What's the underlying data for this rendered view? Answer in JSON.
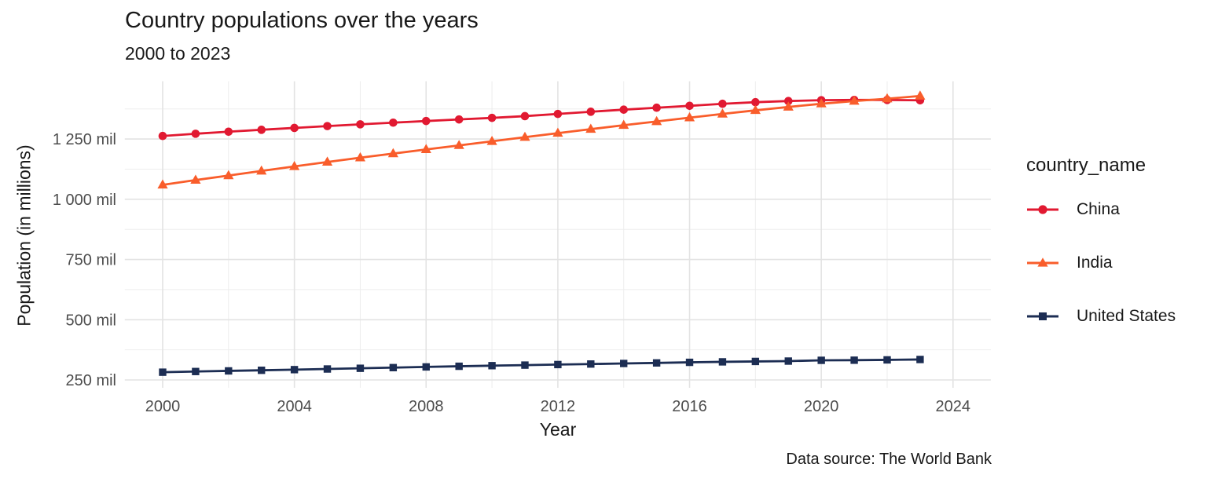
{
  "title": "Country populations over the years",
  "subtitle": "2000 to 2023",
  "caption": "Data source: The World Bank",
  "axes": {
    "x_label": "Year",
    "y_label": "Population (in millions)"
  },
  "legend": {
    "title": "country_name",
    "items": [
      "China",
      "India",
      "United States"
    ]
  },
  "colors": {
    "china": "#E11931",
    "india": "#F95D2B",
    "united_states": "#1C2D53",
    "grid_major": "#E3E3E3",
    "grid_minor": "#EDEDED",
    "tick_text": "#4D4D4D",
    "title_text": "#191919"
  },
  "chart_data": {
    "type": "line",
    "title": "Country populations over the years",
    "subtitle": "2000 to 2023",
    "xlabel": "Year",
    "ylabel": "Population (in millions)",
    "source": "Data source: The World Bank",
    "grid": true,
    "legend_position": "right",
    "legend_title": "country_name",
    "x": [
      2000,
      2001,
      2002,
      2003,
      2004,
      2005,
      2006,
      2007,
      2008,
      2009,
      2010,
      2011,
      2012,
      2013,
      2014,
      2015,
      2016,
      2017,
      2018,
      2019,
      2020,
      2021,
      2022,
      2023
    ],
    "series": [
      {
        "name": "China",
        "marker": "circle",
        "color": "#E11931",
        "values": [
          1262.6,
          1271.9,
          1280.4,
          1288.4,
          1296.1,
          1303.7,
          1311.0,
          1317.9,
          1324.7,
          1331.3,
          1337.7,
          1345.0,
          1354.2,
          1363.2,
          1371.9,
          1379.9,
          1387.8,
          1396.2,
          1402.8,
          1407.7,
          1411.1,
          1412.4,
          1412.2,
          1410.7
        ]
      },
      {
        "name": "India",
        "marker": "triangle",
        "color": "#F95D2B",
        "values": [
          1059.6,
          1079.7,
          1098.3,
          1117.4,
          1136.3,
          1154.6,
          1172.4,
          1189.7,
          1206.7,
          1223.6,
          1240.6,
          1257.6,
          1274.5,
          1291.1,
          1307.2,
          1322.9,
          1338.6,
          1354.2,
          1369.0,
          1383.1,
          1396.4,
          1407.6,
          1417.2,
          1428.6
        ]
      },
      {
        "name": "United States",
        "marker": "square",
        "color": "#1C2D53",
        "values": [
          282.2,
          285.0,
          287.6,
          290.1,
          292.8,
          295.5,
          298.4,
          301.2,
          304.1,
          306.8,
          309.3,
          311.6,
          313.9,
          316.1,
          318.4,
          320.7,
          323.1,
          325.1,
          326.8,
          328.3,
          331.5,
          332.0,
          333.3,
          334.9
        ]
      }
    ],
    "x_axis": {
      "range": [
        1998.85,
        2024.15
      ],
      "major_ticks": [
        {
          "v": 2000,
          "label": "2000"
        },
        {
          "v": 2004,
          "label": "2004"
        },
        {
          "v": 2008,
          "label": "2008"
        },
        {
          "v": 2012,
          "label": "2012"
        },
        {
          "v": 2016,
          "label": "2016"
        },
        {
          "v": 2020,
          "label": "2020"
        },
        {
          "v": 2024,
          "label": "2024"
        }
      ],
      "minor_ticks": [
        2002,
        2006,
        2010,
        2014,
        2018,
        2022
      ]
    },
    "y_axis": {
      "range": [
        224.9,
        1485.9
      ],
      "unit": "millions",
      "major_ticks": [
        {
          "v": 250,
          "label": "250 mil"
        },
        {
          "v": 500,
          "label": "500 mil"
        },
        {
          "v": 750,
          "label": "750 mil"
        },
        {
          "v": 1000,
          "label": "1 000 mil"
        },
        {
          "v": 1250,
          "label": "1 250 mil"
        }
      ],
      "minor_ticks": [
        375,
        625,
        875,
        1125,
        1375
      ]
    }
  }
}
